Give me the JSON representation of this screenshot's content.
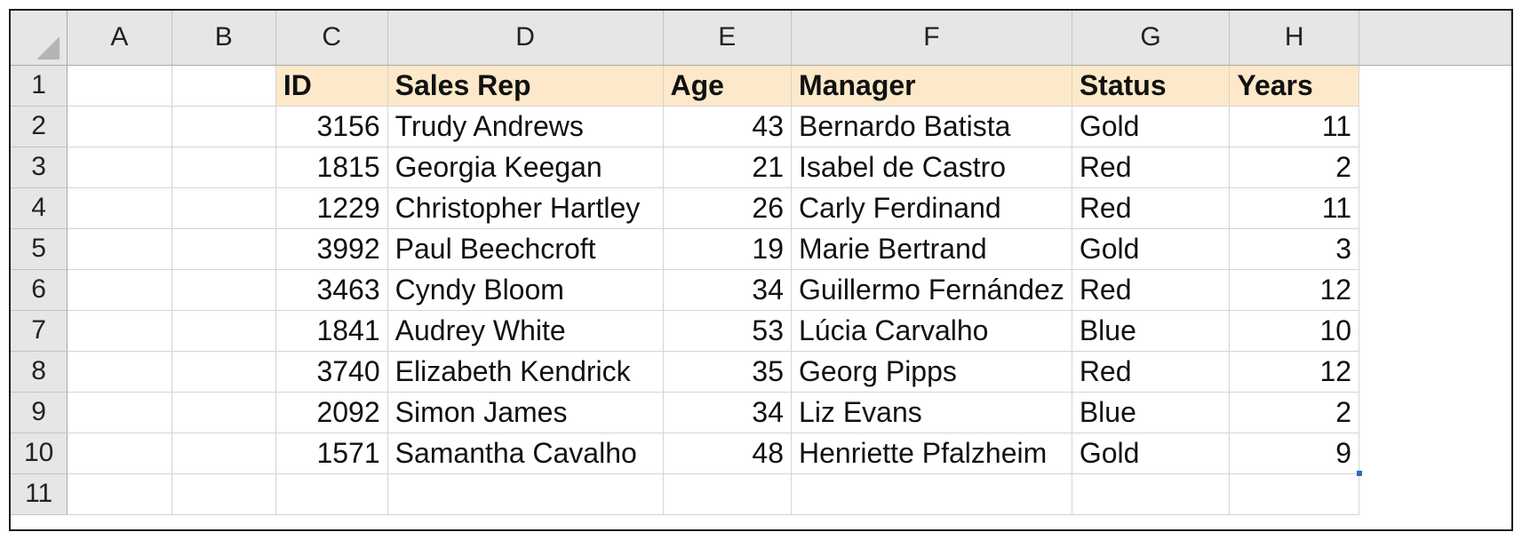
{
  "columns": [
    "A",
    "B",
    "C",
    "D",
    "E",
    "F",
    "G",
    "H"
  ],
  "rows": [
    "1",
    "2",
    "3",
    "4",
    "5",
    "6",
    "7",
    "8",
    "9",
    "10",
    "11"
  ],
  "headers": {
    "id": "ID",
    "sales_rep": "Sales Rep",
    "age": "Age",
    "manager": "Manager",
    "status": "Status",
    "years": "Years"
  },
  "data": [
    {
      "id": "3156",
      "rep": "Trudy Andrews",
      "age": "43",
      "manager": "Bernardo Batista",
      "status": "Gold",
      "years": "11"
    },
    {
      "id": "1815",
      "rep": "Georgia Keegan",
      "age": "21",
      "manager": "Isabel de Castro",
      "status": "Red",
      "years": "2"
    },
    {
      "id": "1229",
      "rep": "Christopher Hartley",
      "age": "26",
      "manager": "Carly Ferdinand",
      "status": "Red",
      "years": "11"
    },
    {
      "id": "3992",
      "rep": "Paul Beechcroft",
      "age": "19",
      "manager": "Marie Bertrand",
      "status": "Gold",
      "years": "3"
    },
    {
      "id": "3463",
      "rep": "Cyndy Bloom",
      "age": "34",
      "manager": "Guillermo Fernández",
      "status": "Red",
      "years": "12"
    },
    {
      "id": "1841",
      "rep": "Audrey White",
      "age": "53",
      "manager": "Lúcia Carvalho",
      "status": "Blue",
      "years": "10"
    },
    {
      "id": "3740",
      "rep": "Elizabeth Kendrick",
      "age": "35",
      "manager": "Georg Pipps",
      "status": "Red",
      "years": "12"
    },
    {
      "id": "2092",
      "rep": "Simon James",
      "age": "34",
      "manager": "Liz Evans",
      "status": "Blue",
      "years": "2"
    },
    {
      "id": "1571",
      "rep": "Samantha Cavalho",
      "age": "48",
      "manager": "Henriette Pfalzheim",
      "status": "Gold",
      "years": "9"
    }
  ],
  "colors": {
    "header_fill": "#fde9c9",
    "grid_header_bg": "#e6e6e6",
    "selection_handle": "#2b6cc4"
  }
}
